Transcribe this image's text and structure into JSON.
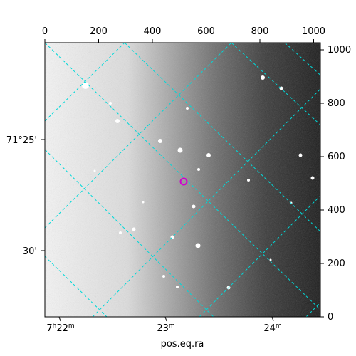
{
  "xlabel": "pos.eq.ra",
  "top_axis": {
    "ticks": [
      "0",
      "200",
      "400",
      "600",
      "800",
      "1000"
    ]
  },
  "right_axis": {
    "ticks": [
      "0",
      "200",
      "400",
      "600",
      "800",
      "1000"
    ]
  },
  "bottom_axis": {
    "ticks": [
      {
        "base": "7",
        "sup": "h",
        "rest": "22",
        "sup2": "m"
      },
      {
        "base": "23",
        "sup": "m"
      },
      {
        "base": "24",
        "sup": "m"
      }
    ]
  },
  "left_axis": {
    "ticks": [
      "71°25'",
      "30'"
    ]
  },
  "colors": {
    "grid": "#00d8d8",
    "marker": "#d000d0",
    "frame": "#000000"
  },
  "image": {
    "content": "grayscale astronomical sky image, bright on the left fading to dark on the right, with scattered stars",
    "marked_source": "magenta circle around one star"
  }
}
